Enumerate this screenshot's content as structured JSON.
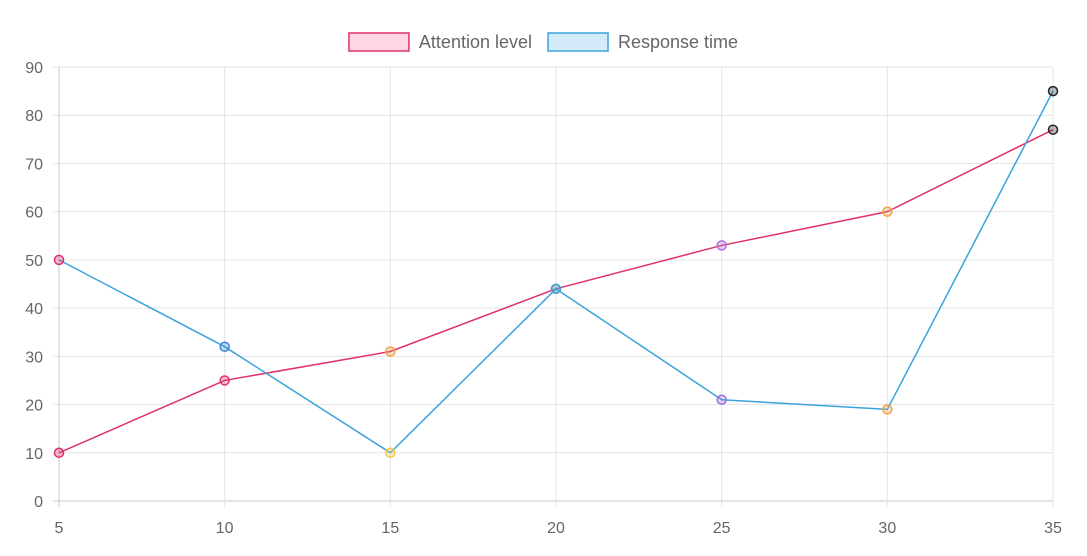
{
  "chart_data": {
    "type": "line",
    "title": "",
    "xlabel": "",
    "ylabel": "",
    "x": [
      5,
      10,
      15,
      20,
      25,
      30,
      35
    ],
    "xlim": [
      5,
      35
    ],
    "ylim": [
      0,
      90
    ],
    "x_ticks": [
      "5",
      "10",
      "15",
      "20",
      "25",
      "30",
      "35"
    ],
    "y_ticks": [
      "0",
      "10",
      "20",
      "30",
      "40",
      "50",
      "60",
      "70",
      "80",
      "90"
    ],
    "grid": true,
    "legend_position": "top-center",
    "series": [
      {
        "name": "Attention level",
        "values": [
          10,
          25,
          31,
          44,
          53,
          60,
          77
        ],
        "line_color": "#e0306e",
        "legend_fill": "#ffd6e6",
        "point_colors": [
          "#e0306e",
          "#e0306e",
          "#f6a04d",
          "#4fa0c8",
          "#b06ee0",
          "#f6a04d",
          "#222222"
        ]
      },
      {
        "name": "Response time",
        "values": [
          50,
          32,
          10,
          44,
          21,
          19,
          85
        ],
        "line_color": "#3aa3dc",
        "legend_fill": "#d4ebf9",
        "point_colors": [
          "#e0306e",
          "#3a84d6",
          "#f6c84d",
          "#4fa0c8",
          "#9a6ee0",
          "#f6a04d",
          "#222222"
        ]
      }
    ]
  }
}
